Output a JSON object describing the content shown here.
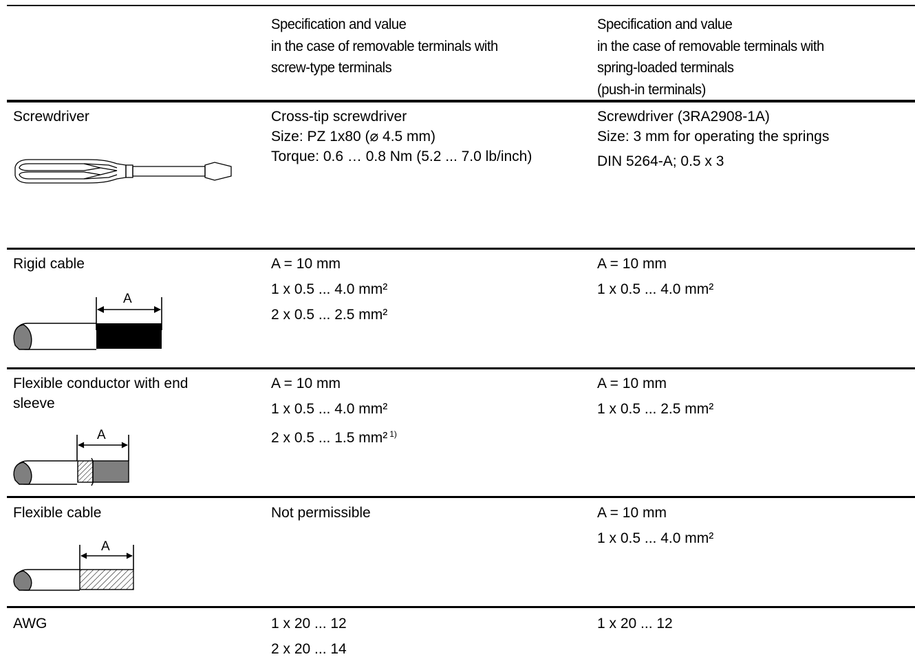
{
  "header": {
    "col1": [
      "Specification and value",
      "in the case of removable terminals with",
      "screw-type terminals"
    ],
    "col2": [
      "Specification and value",
      "in the case of removable terminals with",
      "spring-loaded terminals",
      "(push-in terminals)"
    ]
  },
  "rows": [
    {
      "label": "Screwdriver",
      "col1": [
        "Cross-tip screwdriver",
        "Size: PZ 1x80 (⌀ 4.5 mm)",
        "Torque: 0.6 … 0.8 Nm (5.2 ... 7.0 lb/inch)"
      ],
      "col2": [
        "Screwdriver (3RA2908-1A)",
        "Size: 3 mm for operating the springs",
        "DIN 5264-A; 0.5 x 3"
      ]
    },
    {
      "label": "Rigid cable",
      "dim_label": "A",
      "col1": [
        "A = 10 mm",
        "1 x 0.5 ... 4.0 mm²",
        "2 x 0.5 ... 2.5 mm²"
      ],
      "col2": [
        "A = 10 mm",
        "1 x 0.5 ... 4.0 mm²"
      ]
    },
    {
      "label_lines": [
        "Flexible conductor with end",
        "sleeve"
      ],
      "dim_label": "A",
      "col1": [
        "A = 10 mm",
        "1 x 0.5 ... 4.0 mm²",
        "2 x 0.5 ... 1.5 mm²"
      ],
      "col1_footnote": "1)",
      "col2": [
        "A = 10 mm",
        "1 x 0.5 ... 2.5 mm²"
      ]
    },
    {
      "label": "Flexible cable",
      "dim_label": "A",
      "col1": [
        "Not permissible"
      ],
      "col2": [
        "A = 10 mm",
        "1 x 0.5 ... 4.0 mm²"
      ]
    },
    {
      "label": "AWG",
      "col1": [
        "1 x 20 ... 12",
        "2 x 20 ... 14"
      ],
      "col2": [
        "1 x 20 ... 12"
      ]
    }
  ],
  "icons": {
    "screwdriver": "screwdriver-icon",
    "rigid_cable": "rigid-cable-icon",
    "flexible_sleeve": "flexible-conductor-end-sleeve-icon",
    "flexible_cable": "flexible-cable-icon"
  }
}
